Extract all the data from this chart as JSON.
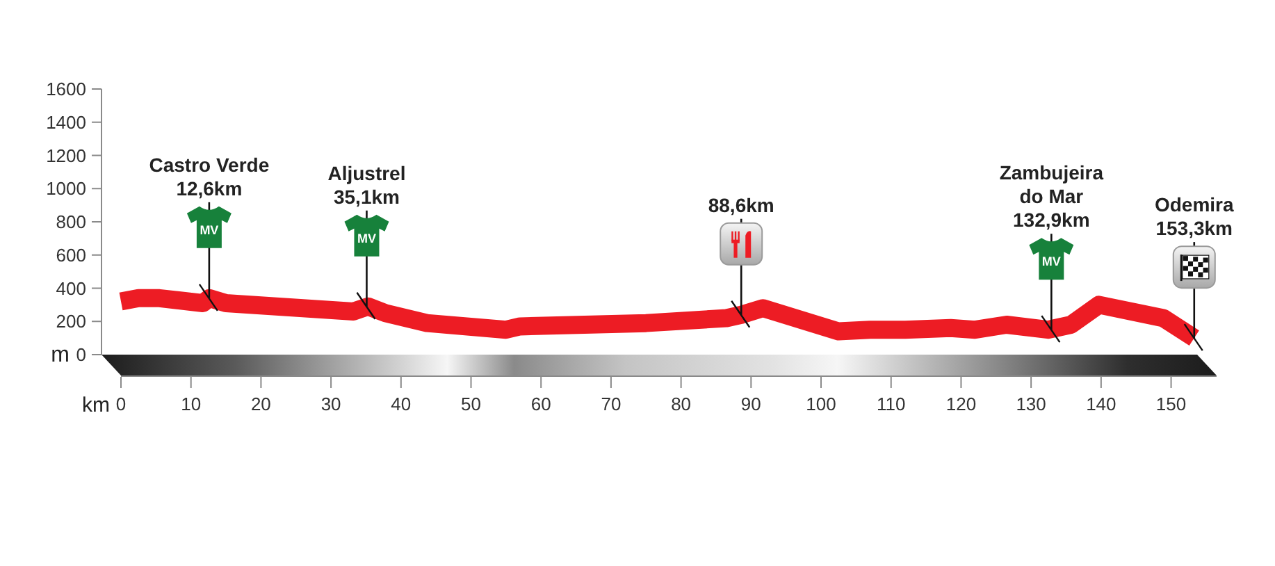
{
  "chart_data": {
    "type": "line",
    "xlabel": "km",
    "ylabel": "m",
    "color": "#ed1c24",
    "x": [
      0,
      2.5,
      5.5,
      11.7,
      12.6,
      15,
      33.2,
      35.3,
      37.8,
      43.7,
      55,
      57,
      75,
      86.5,
      88.6,
      91.7,
      102.5,
      107,
      112,
      118.5,
      122,
      126.5,
      132.4,
      135.7,
      139.7,
      148.9,
      153.3
    ],
    "values": [
      320,
      340,
      340,
      310,
      340,
      310,
      260,
      290,
      250,
      190,
      150,
      170,
      190,
      220,
      240,
      280,
      140,
      150,
      150,
      160,
      150,
      180,
      150,
      180,
      300,
      220,
      100
    ],
    "xlim": [
      0,
      156.5
    ],
    "xticks": [
      0,
      10,
      20,
      30,
      40,
      50,
      60,
      70,
      80,
      90,
      100,
      110,
      120,
      130,
      140,
      150
    ],
    "ylim": [
      0,
      1600
    ],
    "yticks": [
      0,
      200,
      400,
      600,
      800,
      1000,
      1200,
      1400,
      1600
    ],
    "annotations": [
      {
        "text": "Castro Verde\n12,6km",
        "x": 12.6,
        "y": 340
      },
      "MV",
      {
        "text": "Aljustrel\n35,1km",
        "x": 35.1,
        "y": 290
      },
      "MV",
      {
        "text": "88,6km",
        "x": 88.6,
        "y": 240
      },
      {
        "text": "Zambujeira\ndo Mar\n132,9km",
        "x": 132.9,
        "y": 150
      },
      "MV",
      {
        "text": "Odemira\n153,3km",
        "x": 153.3,
        "y": 100
      }
    ]
  }
}
